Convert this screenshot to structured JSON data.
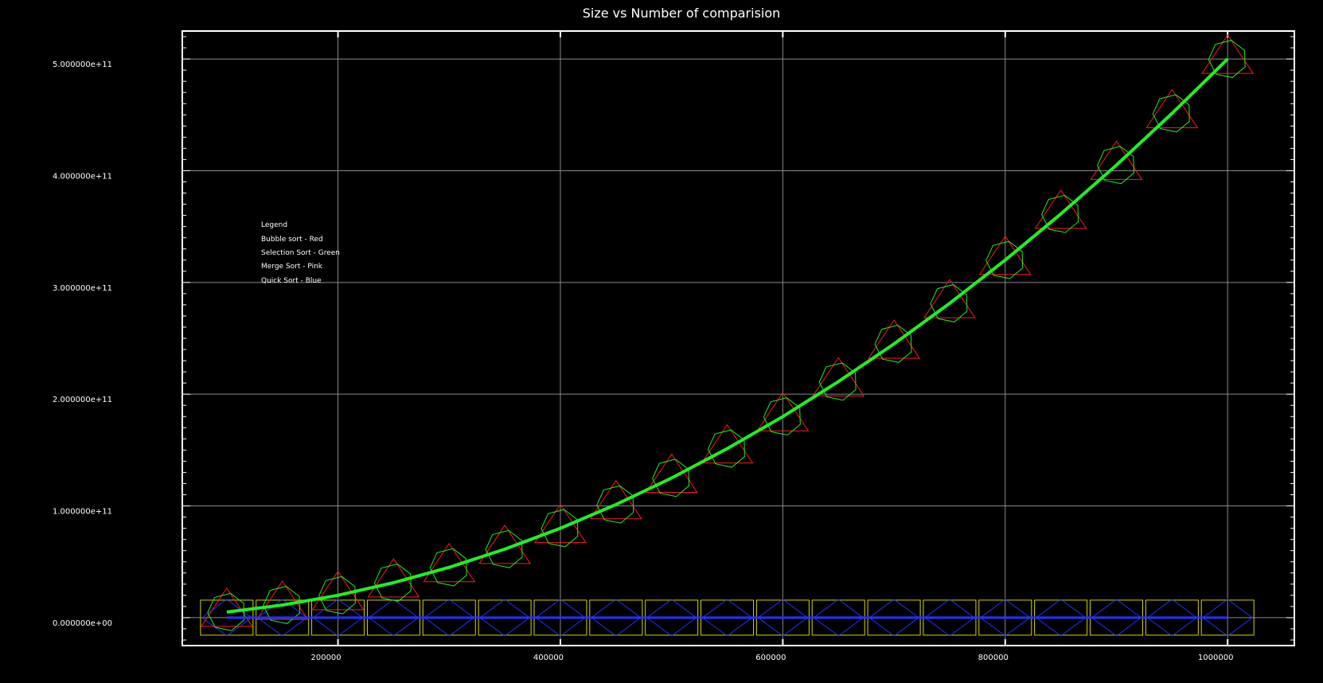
{
  "chart_data": {
    "type": "line",
    "title": "Size vs Number of comparision",
    "xlabel": "",
    "ylabel": "",
    "xlim": [
      60000,
      1060000
    ],
    "ylim": [
      -25000000000,
      525000000000
    ],
    "grid": true,
    "x_ticks": [
      200000,
      400000,
      600000,
      800000,
      1000000
    ],
    "x_tick_labels": [
      "200000",
      "400000",
      "600000",
      "800000",
      "1000000"
    ],
    "y_ticks": [
      0,
      100000000000,
      200000000000,
      300000000000,
      400000000000,
      500000000000
    ],
    "y_tick_labels": [
      "0.000000e+00",
      "1.000000e+11",
      "2.000000e+11",
      "3.000000e+11",
      "4.000000e+11",
      "5.000000e+11"
    ],
    "x": [
      100000,
      150000,
      200000,
      250000,
      300000,
      350000,
      400000,
      450000,
      500000,
      550000,
      600000,
      650000,
      700000,
      750000,
      800000,
      850000,
      900000,
      950000,
      1000000
    ],
    "legend": {
      "position": "top-left",
      "title": "Legend",
      "entries": [
        "Bubble sort - Red",
        "Selection Sort - Green",
        "Merge Sort - Pink",
        "Quick Sort - Blue"
      ]
    },
    "series": [
      {
        "name": "Bubble sort - Red",
        "color": "#ff1a1a",
        "marker": "triangle",
        "values": [
          5000000000,
          11250000000,
          20000000000,
          31250000000,
          45000000000,
          61250000000,
          80000000000,
          101250000000,
          125000000000,
          151250000000,
          180000000000,
          211250000000,
          245000000000,
          281250000000,
          320000000000,
          361250000000,
          405000000000,
          451250000000,
          500000000000
        ]
      },
      {
        "name": "Selection Sort - Green",
        "color": "#22ee22",
        "marker": "heptagon",
        "line": true,
        "values": [
          5000000000,
          11250000000,
          20000000000,
          31250000000,
          45000000000,
          61250000000,
          80000000000,
          101250000000,
          125000000000,
          151250000000,
          180000000000,
          211250000000,
          245000000000,
          281250000000,
          320000000000,
          361250000000,
          405000000000,
          451250000000,
          500000000000
        ]
      },
      {
        "name": "Merge Sort - Pink",
        "color": "#d4d400",
        "marker": "square",
        "values": [
          1700000,
          2600000,
          3600000,
          4600000,
          5600000,
          6700000,
          7700000,
          8800000,
          9800000,
          10900000,
          12000000,
          13100000,
          14100000,
          15200000,
          16300000,
          17400000,
          18500000,
          19600000,
          20700000
        ]
      },
      {
        "name": "Quick Sort - Blue",
        "color": "#2233ff",
        "marker": "diamond",
        "line": true,
        "values": [
          2200000,
          3500000,
          4800000,
          6100000,
          7500000,
          8900000,
          10300000,
          11700000,
          13100000,
          14500000,
          16000000,
          17400000,
          18900000,
          20300000,
          21800000,
          23300000,
          24800000,
          26300000,
          27800000
        ]
      }
    ]
  }
}
